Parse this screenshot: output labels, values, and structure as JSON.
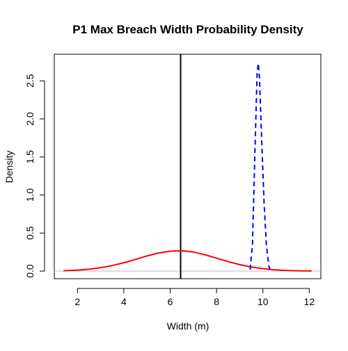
{
  "chart_data": {
    "type": "line",
    "title": "P1 Max Breach Width Probability Density",
    "xlabel": "Width (m)",
    "ylabel": "Density",
    "xlim": [
      1.0,
      12.5
    ],
    "ylim": [
      -0.1,
      2.85
    ],
    "x_ticks": [
      2,
      4,
      6,
      8,
      10,
      12
    ],
    "y_ticks": [
      0.0,
      0.5,
      1.0,
      1.5,
      2.0,
      2.5
    ],
    "x_tick_labels": [
      "2",
      "4",
      "6",
      "8",
      "10",
      "12"
    ],
    "y_tick_labels": [
      "0.0",
      "0.5",
      "1.0",
      "1.5",
      "2.0",
      "2.5"
    ],
    "grid": false,
    "baseline": 0,
    "vertical_line_x": 6.45,
    "series": [
      {
        "style": "solid",
        "color": "#ff0000",
        "x": [
          1.4,
          2.0,
          2.5,
          3.0,
          3.5,
          4.0,
          4.5,
          5.0,
          5.5,
          6.0,
          6.3,
          6.6,
          7.0,
          7.5,
          8.0,
          8.5,
          9.0,
          9.5,
          10.0,
          10.5,
          11.0,
          11.5,
          12.1
        ],
        "values": [
          0.005,
          0.013,
          0.025,
          0.045,
          0.073,
          0.11,
          0.153,
          0.199,
          0.238,
          0.262,
          0.267,
          0.265,
          0.25,
          0.215,
          0.17,
          0.125,
          0.085,
          0.054,
          0.032,
          0.018,
          0.009,
          0.004,
          0.002
        ]
      },
      {
        "style": "dashed",
        "color": "#0000ff",
        "x": [
          9.45,
          9.55,
          9.65,
          9.75,
          9.8,
          9.85,
          9.95,
          10.05,
          10.15,
          10.25,
          10.3
        ],
        "values": [
          0.02,
          0.35,
          1.5,
          2.6,
          2.73,
          2.55,
          1.7,
          0.9,
          0.35,
          0.08,
          0.02
        ]
      }
    ],
    "colors": {
      "density_line": "#ff0000",
      "dashed_line": "#0000ff",
      "vertical_line": "#000000",
      "baseline": "#bebebe"
    }
  }
}
